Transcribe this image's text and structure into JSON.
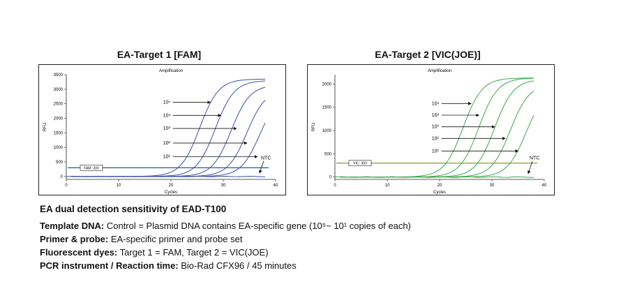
{
  "chart_data": [
    {
      "type": "line",
      "title": "EA-Target 1 [FAM]",
      "subtitle": "Amplification",
      "xlabel": "Cycles",
      "ylabel": "RFU",
      "xlim": [
        0,
        40
      ],
      "ylim": [
        -100,
        3500
      ],
      "xticks": [
        0,
        10,
        20,
        30,
        40
      ],
      "yticks": [
        0,
        500,
        1000,
        1500,
        2000,
        2500,
        3000,
        3500
      ],
      "line_color": "#3b4fa8",
      "threshold": {
        "label": "FAM: 300",
        "value": 300,
        "color": "#1f3f8f"
      },
      "series": [
        {
          "name": "10⁵",
          "midpoint": 25.5,
          "plateau": 3350,
          "arrow_value": 2550,
          "arrow_end_x": 27.5
        },
        {
          "name": "10⁴",
          "midpoint": 28.5,
          "plateau": 3300,
          "arrow_value": 2100,
          "arrow_end_x": 29.5
        },
        {
          "name": "10³",
          "midpoint": 31.5,
          "plateau": 3150,
          "arrow_value": 1650,
          "arrow_end_x": 32.5
        },
        {
          "name": "10²",
          "midpoint": 34.5,
          "plateau": 3000,
          "arrow_value": 1150,
          "arrow_end_x": 34.5
        },
        {
          "name": "10¹",
          "midpoint": 37,
          "plateau": 2900,
          "arrow_value": 680,
          "arrow_end_x": 36.5
        }
      ],
      "ntc": {
        "label": "NTC",
        "value": 0
      }
    },
    {
      "type": "line",
      "title": "EA-Target 2 [VIC(JOE)]",
      "subtitle": "Amplification",
      "xlabel": "Cycles",
      "ylabel": "RFU",
      "xlim": [
        0,
        40
      ],
      "ylim": [
        -50,
        2200
      ],
      "xticks": [
        0,
        10,
        20,
        30,
        40
      ],
      "yticks": [
        0,
        500,
        1000,
        1500,
        2000
      ],
      "line_color": "#3aa84a",
      "threshold": {
        "label": "VIC: 300",
        "value": 300,
        "color": "#8a8a1a"
      },
      "series": [
        {
          "name": "10⁵",
          "midpoint": 24.5,
          "plateau": 2130,
          "arrow_value": 1580,
          "arrow_end_x": 26
        },
        {
          "name": "10⁴",
          "midpoint": 27.5,
          "plateau": 2130,
          "arrow_value": 1330,
          "arrow_end_x": 27.5
        },
        {
          "name": "10³",
          "midpoint": 30.5,
          "plateau": 2100,
          "arrow_value": 1080,
          "arrow_end_x": 30.5
        },
        {
          "name": "10²",
          "midpoint": 33.5,
          "plateau": 2000,
          "arrow_value": 830,
          "arrow_end_x": 32.5
        },
        {
          "name": "10¹",
          "midpoint": 36.5,
          "plateau": 1900,
          "arrow_value": 560,
          "arrow_end_x": 35
        }
      ],
      "ntc": {
        "label": "NTC",
        "value": 0
      }
    }
  ],
  "caption": {
    "heading": "EA dual detection sensitivity of EAD-T100",
    "lines": [
      {
        "label": "Template DNA:",
        "text": " Control = Plasmid DNA contains EA-specific gene (10⁵~ 10¹ copies of each)"
      },
      {
        "label": "Primer & probe:",
        "text": " EA-specific primer and probe set"
      },
      {
        "label": "Fluorescent dyes:",
        "text": " Target 1 = FAM, Target 2 = VIC(JOE)"
      },
      {
        "label": "PCR instrument / Reaction time:",
        "text": " Bio-Rad CFX96 / 45 minutes"
      }
    ]
  }
}
